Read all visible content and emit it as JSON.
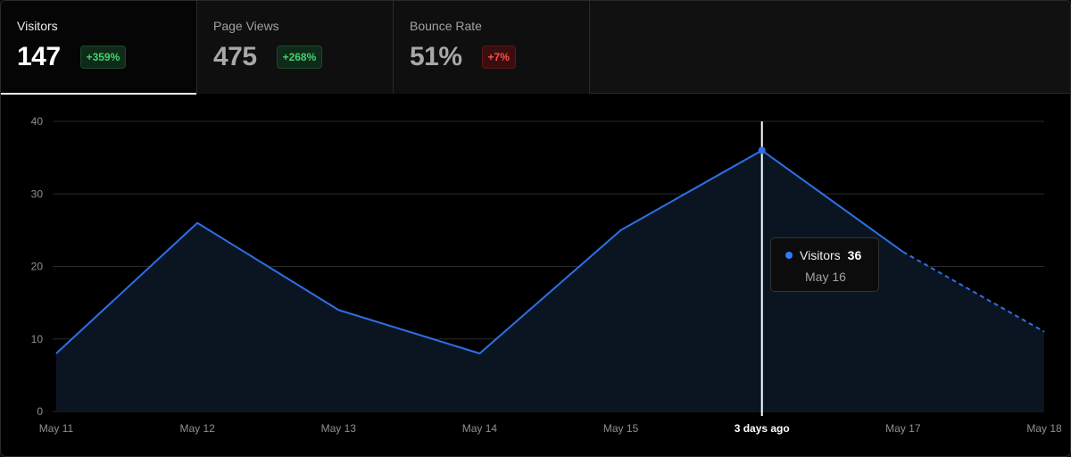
{
  "tabs": [
    {
      "label": "Visitors",
      "value": "147",
      "change": "+359%",
      "trend": "up",
      "active": true
    },
    {
      "label": "Page Views",
      "value": "475",
      "change": "+268%",
      "trend": "up",
      "active": false
    },
    {
      "label": "Bounce Rate",
      "value": "51%",
      "change": "+7%",
      "trend": "down",
      "active": false
    }
  ],
  "tooltip": {
    "series": "Visitors",
    "value": "36",
    "date": "May 16",
    "hover_label": "3 days ago"
  },
  "colors": {
    "line": "#2f6fe8",
    "area": "#0b1522",
    "grid": "#2a2a2a",
    "cursor": "#ffffff",
    "positive_badge": "#3fd471",
    "negative_badge": "#ff4d4d"
  },
  "chart_data": {
    "type": "area",
    "x": [
      "May 11",
      "May 12",
      "May 13",
      "May 14",
      "May 15",
      "May 16",
      "May 17",
      "May 18"
    ],
    "series": [
      {
        "name": "Visitors",
        "values": [
          8,
          26,
          14,
          8,
          25,
          36,
          22,
          11
        ],
        "dashed_from_index": 6
      }
    ],
    "ylim": [
      0,
      40
    ],
    "yticks": [
      0,
      10,
      20,
      30,
      40
    ],
    "grid": true,
    "highlight_index": 5
  }
}
